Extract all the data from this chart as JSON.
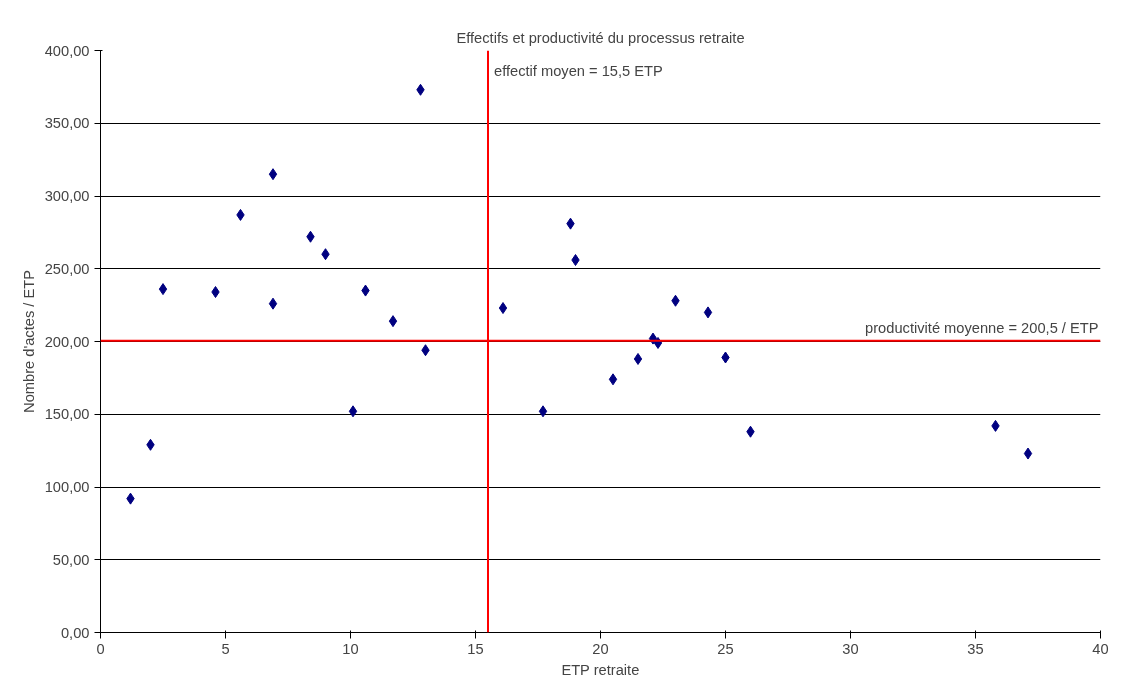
{
  "chart_data": {
    "type": "scatter",
    "title": "Effectifs et productivité du processus retraite",
    "xlabel": "ETP retraite",
    "ylabel": "Nombre d'actes / ETP",
    "x": [
      1.2,
      2.0,
      2.5,
      4.6,
      5.6,
      6.9,
      6.9,
      8.4,
      9.0,
      10.1,
      10.6,
      11.7,
      12.8,
      13.0,
      16.1,
      17.7,
      18.8,
      19.0,
      20.5,
      21.5,
      22.1,
      22.3,
      23.0,
      24.3,
      25.0,
      26.0,
      35.8,
      37.1
    ],
    "series": [
      {
        "color": "#000080",
        "values": [
          92,
          129,
          236,
          234,
          287,
          315,
          226,
          272,
          260,
          152,
          235,
          214,
          373,
          194,
          223,
          152,
          281,
          256,
          174,
          188,
          202,
          199,
          228,
          220,
          189,
          138,
          142,
          123
        ]
      }
    ],
    "xlim": [
      0,
      40
    ],
    "xticks": [
      0,
      5,
      10,
      15,
      20,
      25,
      30,
      35,
      40
    ],
    "ylim": [
      0,
      400
    ],
    "yticks": [
      {
        "value": 0,
        "label": "0,00"
      },
      {
        "value": 50,
        "label": "50,00"
      },
      {
        "value": 100,
        "label": "100,00"
      },
      {
        "value": 150,
        "label": "150,00"
      },
      {
        "value": 200,
        "label": "200,00"
      },
      {
        "value": 250,
        "label": "250,00"
      },
      {
        "value": 300,
        "label": "300,00"
      },
      {
        "value": 350,
        "label": "350,00"
      },
      {
        "value": 400,
        "label": "400,00"
      }
    ],
    "ref_lines": [
      {
        "axis": "x",
        "value": 15.5,
        "label": "effectif moyen = 15,5 ETP",
        "color": "#ff0000"
      },
      {
        "axis": "y",
        "value": 200.5,
        "label": "productivité moyenne = 200,5 / ETP",
        "color": "#ff0000"
      }
    ],
    "grid": "y",
    "marker": "diamond"
  }
}
